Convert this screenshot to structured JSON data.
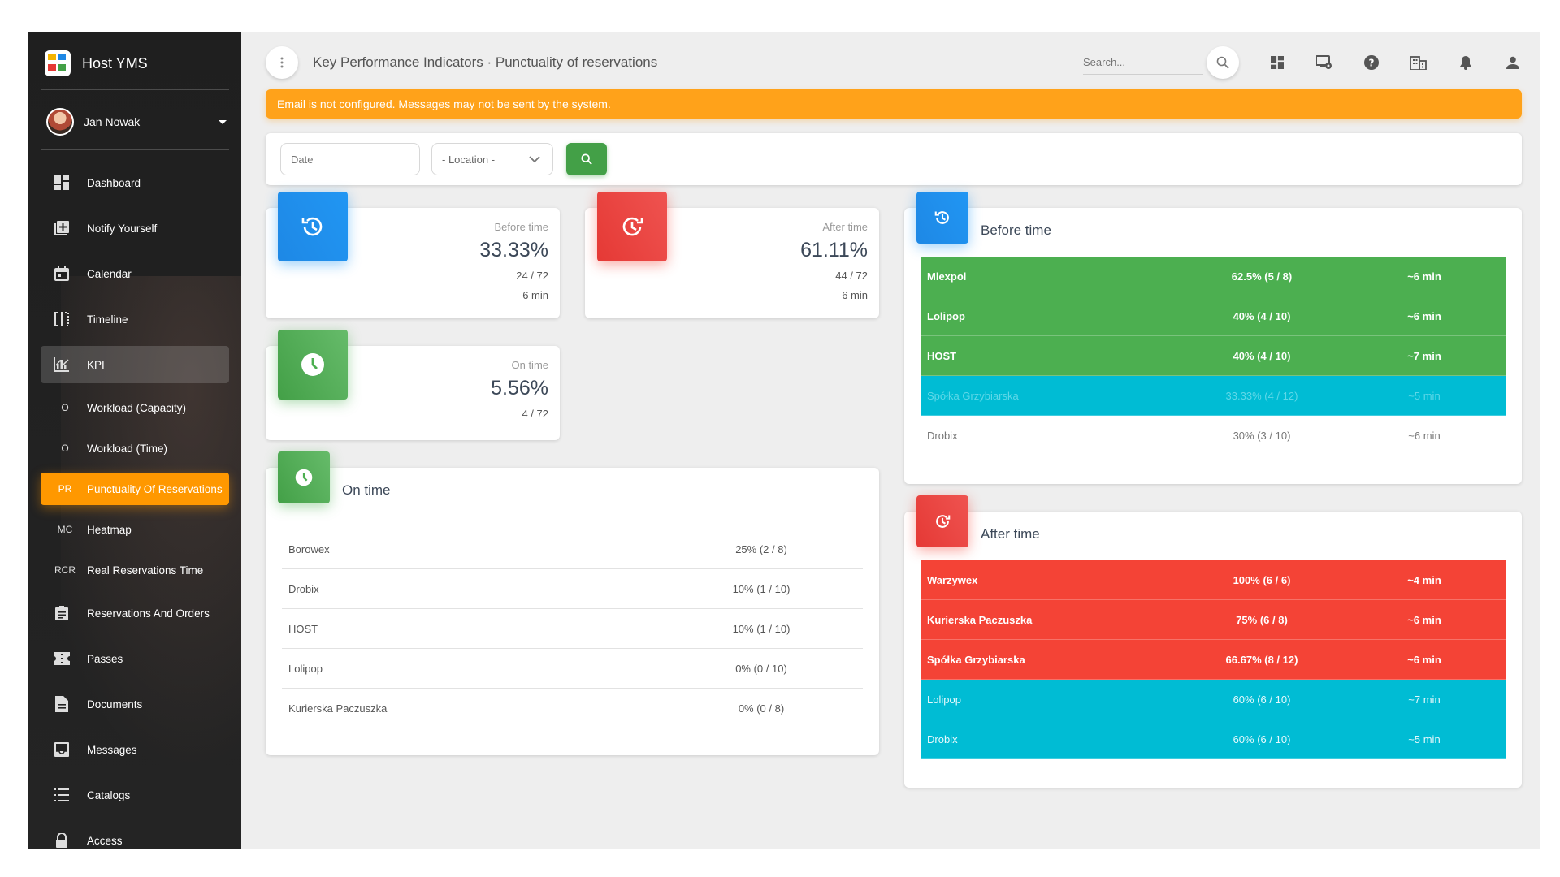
{
  "app": {
    "title": "Host YMS"
  },
  "user": {
    "name": "Jan Nowak"
  },
  "nav": [
    {
      "label": "Dashboard",
      "icon": "dashboard-icon"
    },
    {
      "label": "Notify Yourself",
      "icon": "add-box-icon"
    },
    {
      "label": "Calendar",
      "icon": "calendar-icon"
    },
    {
      "label": "Timeline",
      "icon": "timeline-icon"
    },
    {
      "label": "KPI",
      "icon": "chart-icon"
    },
    {
      "abbr": "O",
      "label": "Workload (Capacity)"
    },
    {
      "abbr": "O",
      "label": "Workload (Time)"
    },
    {
      "abbr": "PR",
      "label": "Punctuality Of Reservations"
    },
    {
      "abbr": "MC",
      "label": "Heatmap"
    },
    {
      "abbr": "RCR",
      "label": "Real Reservations Time"
    },
    {
      "label": "Reservations And Orders",
      "icon": "clipboard-icon"
    },
    {
      "label": "Passes",
      "icon": "ticket-icon"
    },
    {
      "label": "Documents",
      "icon": "document-icon"
    },
    {
      "label": "Messages",
      "icon": "inbox-icon"
    },
    {
      "label": "Catalogs",
      "icon": "list-icon"
    },
    {
      "label": "Access",
      "icon": "lock-icon"
    }
  ],
  "header": {
    "title": "Key Performance Indicators · Punctuality of reservations",
    "search_placeholder": "Search..."
  },
  "alert": {
    "text": "Email is not configured. Messages may not be sent by the system."
  },
  "filters": {
    "date_placeholder": "Date",
    "location_value": "- Location -"
  },
  "stats": {
    "before": {
      "label": "Before time",
      "value": "33.33%",
      "count": "24 / 72",
      "avg": "6 min"
    },
    "after": {
      "label": "After time",
      "value": "61.11%",
      "count": "44 / 72",
      "avg": "6 min"
    },
    "on": {
      "label": "On time",
      "value": "5.56%",
      "count": "4 / 72"
    }
  },
  "on_time_table": {
    "title": "On time",
    "rows": [
      {
        "name": "Borowex",
        "value": "25% (2 / 8)"
      },
      {
        "name": "Drobix",
        "value": "10% (1 / 10)"
      },
      {
        "name": "HOST",
        "value": "10% (1 / 10)"
      },
      {
        "name": "Lolipop",
        "value": "0% (0 / 10)"
      },
      {
        "name": "Kurierska Paczuszka",
        "value": "0% (0 / 8)"
      }
    ]
  },
  "before_table": {
    "title": "Before time",
    "rows": [
      {
        "name": "Mlexpol",
        "value": "62.5% (5 / 8)",
        "avg": "~6 min"
      },
      {
        "name": "Lolipop",
        "value": "40% (4 / 10)",
        "avg": "~6 min"
      },
      {
        "name": "HOST",
        "value": "40% (4 / 10)",
        "avg": "~7 min"
      },
      {
        "name": "Spółka Grzybiarska",
        "value": "33.33% (4 / 12)",
        "avg": "~5 min"
      },
      {
        "name": "Drobix",
        "value": "30% (3 / 10)",
        "avg": "~6 min"
      }
    ]
  },
  "after_table": {
    "title": "After time",
    "rows": [
      {
        "name": "Warzywex",
        "value": "100% (6 / 6)",
        "avg": "~4 min"
      },
      {
        "name": "Kurierska Paczuszka",
        "value": "75% (6 / 8)",
        "avg": "~6 min"
      },
      {
        "name": "Spółka Grzybiarska",
        "value": "66.67% (8 / 12)",
        "avg": "~6 min"
      },
      {
        "name": "Lolipop",
        "value": "60% (6 / 10)",
        "avg": "~7 min"
      },
      {
        "name": "Drobix",
        "value": "60% (6 / 10)",
        "avg": "~5 min"
      }
    ]
  },
  "colors": {
    "accent": "#ff9800",
    "green": "#4caf50",
    "red": "#f44336",
    "cyan": "#00bcd4",
    "blue": "#2196f3"
  }
}
